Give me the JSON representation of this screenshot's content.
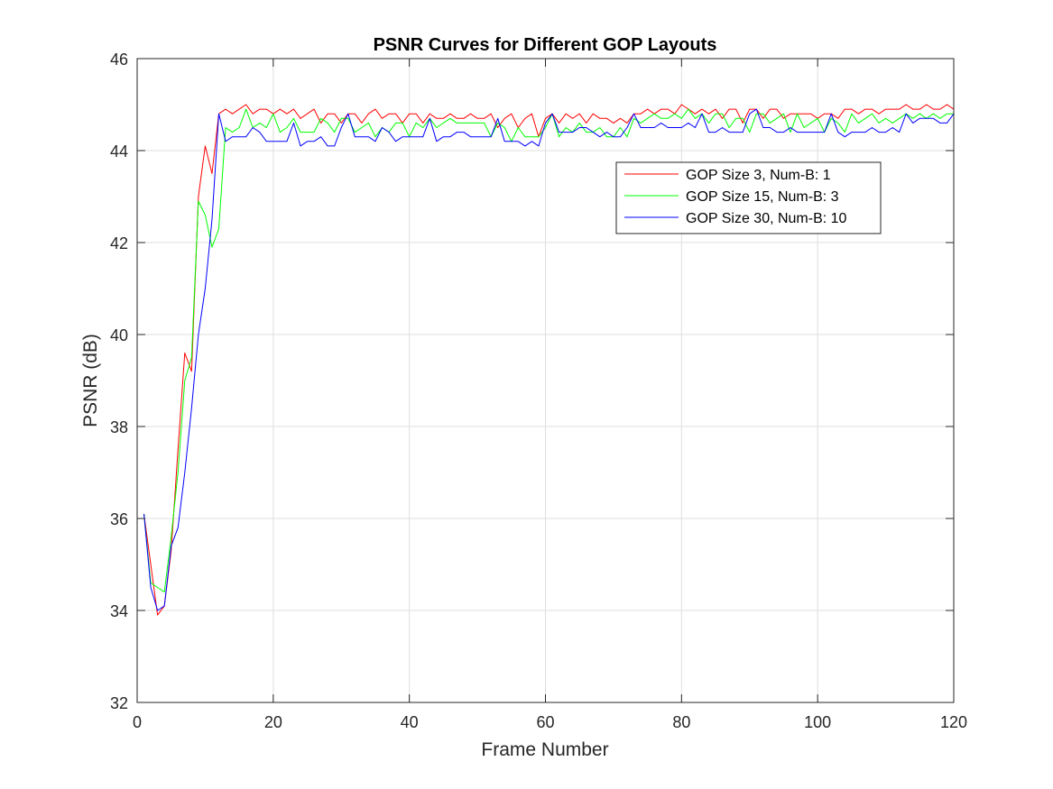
{
  "chart_data": {
    "type": "line",
    "title": "PSNR Curves for Different GOP Layouts",
    "xlabel": "Frame Number",
    "ylabel": "PSNR (dB)",
    "xlim": [
      0,
      120
    ],
    "ylim": [
      32,
      46
    ],
    "xticks": [
      0,
      20,
      40,
      60,
      80,
      100,
      120
    ],
    "yticks": [
      32,
      34,
      36,
      38,
      40,
      42,
      44,
      46
    ],
    "grid": true,
    "legend_position": "upper-right",
    "series": [
      {
        "name": "GOP Size 3, Num-B: 1",
        "color": "#ff0000",
        "x": [
          1,
          2,
          3,
          4,
          5,
          6,
          7,
          8,
          9,
          10,
          11,
          12,
          13,
          14,
          15,
          16,
          17,
          18,
          19,
          20,
          21,
          22,
          23,
          24,
          25,
          26,
          27,
          28,
          29,
          30,
          31,
          32,
          33,
          34,
          35,
          36,
          37,
          38,
          39,
          40,
          41,
          42,
          43,
          44,
          45,
          46,
          47,
          48,
          49,
          50,
          51,
          52,
          53,
          54,
          55,
          56,
          57,
          58,
          59,
          60,
          61,
          62,
          63,
          64,
          65,
          66,
          67,
          68,
          69,
          70,
          71,
          72,
          73,
          74,
          75,
          76,
          77,
          78,
          79,
          80,
          81,
          82,
          83,
          84,
          85,
          86,
          87,
          88,
          89,
          90,
          91,
          92,
          93,
          94,
          95,
          96,
          97,
          98,
          99,
          100,
          101,
          102,
          103,
          104,
          105,
          106,
          107,
          108,
          109,
          110,
          111,
          112,
          113,
          114,
          115,
          116,
          117,
          118,
          119,
          120
        ],
        "y": [
          36.1,
          35.0,
          33.9,
          34.1,
          35.3,
          37.5,
          39.6,
          39.2,
          43.0,
          44.1,
          43.5,
          44.8,
          44.9,
          44.8,
          44.9,
          45.0,
          44.8,
          44.9,
          44.9,
          44.8,
          44.9,
          44.8,
          44.9,
          44.7,
          44.8,
          44.9,
          44.6,
          44.8,
          44.8,
          44.6,
          44.8,
          44.8,
          44.6,
          44.8,
          44.9,
          44.7,
          44.8,
          44.8,
          44.6,
          44.8,
          44.8,
          44.6,
          44.8,
          44.7,
          44.7,
          44.8,
          44.7,
          44.7,
          44.8,
          44.7,
          44.7,
          44.8,
          44.5,
          44.7,
          44.8,
          44.5,
          44.7,
          44.8,
          44.3,
          44.7,
          44.8,
          44.6,
          44.8,
          44.7,
          44.8,
          44.6,
          44.8,
          44.7,
          44.7,
          44.6,
          44.7,
          44.6,
          44.8,
          44.8,
          44.9,
          44.8,
          44.9,
          44.9,
          44.8,
          45.0,
          44.9,
          44.8,
          44.9,
          44.8,
          44.9,
          44.7,
          44.9,
          44.9,
          44.6,
          44.9,
          44.9,
          44.7,
          44.9,
          44.9,
          44.7,
          44.8,
          44.8,
          44.8,
          44.8,
          44.7,
          44.8,
          44.8,
          44.7,
          44.9,
          44.9,
          44.8,
          44.9,
          44.9,
          44.8,
          44.9,
          44.9,
          44.9,
          45.0,
          44.9,
          44.9,
          45.0,
          44.9,
          44.9,
          45.0,
          44.9
        ]
      },
      {
        "name": "GOP Size 15, Num-B: 3",
        "color": "#00ff00",
        "x": [
          1,
          2,
          3,
          4,
          5,
          6,
          7,
          8,
          9,
          10,
          11,
          12,
          13,
          14,
          15,
          16,
          17,
          18,
          19,
          20,
          21,
          22,
          23,
          24,
          25,
          26,
          27,
          28,
          29,
          30,
          31,
          32,
          33,
          34,
          35,
          36,
          37,
          38,
          39,
          40,
          41,
          42,
          43,
          44,
          45,
          46,
          47,
          48,
          49,
          50,
          51,
          52,
          53,
          54,
          55,
          56,
          57,
          58,
          59,
          60,
          61,
          62,
          63,
          64,
          65,
          66,
          67,
          68,
          69,
          70,
          71,
          72,
          73,
          74,
          75,
          76,
          77,
          78,
          79,
          80,
          81,
          82,
          83,
          84,
          85,
          86,
          87,
          88,
          89,
          90,
          91,
          92,
          93,
          94,
          95,
          96,
          97,
          98,
          99,
          100,
          101,
          102,
          103,
          104,
          105,
          106,
          107,
          108,
          109,
          110,
          111,
          112,
          113,
          114,
          115,
          116,
          117,
          118,
          119,
          120
        ],
        "y": [
          36.1,
          34.6,
          34.5,
          34.4,
          35.6,
          37.0,
          39.0,
          39.5,
          42.9,
          42.6,
          41.9,
          42.3,
          44.5,
          44.4,
          44.5,
          44.9,
          44.5,
          44.6,
          44.5,
          44.8,
          44.4,
          44.5,
          44.7,
          44.4,
          44.4,
          44.4,
          44.7,
          44.6,
          44.4,
          44.7,
          44.7,
          44.4,
          44.5,
          44.6,
          44.3,
          44.5,
          44.4,
          44.6,
          44.6,
          44.3,
          44.6,
          44.5,
          44.7,
          44.5,
          44.6,
          44.7,
          44.6,
          44.6,
          44.6,
          44.6,
          44.6,
          44.3,
          44.6,
          44.5,
          44.2,
          44.5,
          44.3,
          44.3,
          44.3,
          44.5,
          44.8,
          44.3,
          44.5,
          44.4,
          44.6,
          44.4,
          44.4,
          44.5,
          44.3,
          44.3,
          44.5,
          44.3,
          44.7,
          44.6,
          44.7,
          44.8,
          44.7,
          44.7,
          44.8,
          44.7,
          44.9,
          44.7,
          44.8,
          44.6,
          44.8,
          44.8,
          44.5,
          44.7,
          44.7,
          44.4,
          44.8,
          44.8,
          44.6,
          44.7,
          44.8,
          44.4,
          44.8,
          44.5,
          44.6,
          44.7,
          44.4,
          44.7,
          44.6,
          44.4,
          44.8,
          44.6,
          44.7,
          44.8,
          44.6,
          44.7,
          44.6,
          44.7,
          44.8,
          44.7,
          44.8,
          44.7,
          44.8,
          44.7,
          44.8,
          44.8
        ]
      },
      {
        "name": "GOP Size 30, Num-B: 10",
        "color": "#0000ff",
        "x": [
          1,
          2,
          3,
          4,
          5,
          6,
          7,
          8,
          9,
          10,
          11,
          12,
          13,
          14,
          15,
          16,
          17,
          18,
          19,
          20,
          21,
          22,
          23,
          24,
          25,
          26,
          27,
          28,
          29,
          30,
          31,
          32,
          33,
          34,
          35,
          36,
          37,
          38,
          39,
          40,
          41,
          42,
          43,
          44,
          45,
          46,
          47,
          48,
          49,
          50,
          51,
          52,
          53,
          54,
          55,
          56,
          57,
          58,
          59,
          60,
          61,
          62,
          63,
          64,
          65,
          66,
          67,
          68,
          69,
          70,
          71,
          72,
          73,
          74,
          75,
          76,
          77,
          78,
          79,
          80,
          81,
          82,
          83,
          84,
          85,
          86,
          87,
          88,
          89,
          90,
          91,
          92,
          93,
          94,
          95,
          96,
          97,
          98,
          99,
          100,
          101,
          102,
          103,
          104,
          105,
          106,
          107,
          108,
          109,
          110,
          111,
          112,
          113,
          114,
          115,
          116,
          117,
          118,
          119,
          120
        ],
        "y": [
          36.1,
          34.5,
          34.0,
          34.1,
          35.4,
          35.8,
          37.0,
          38.4,
          40.0,
          41.0,
          42.5,
          44.8,
          44.2,
          44.3,
          44.3,
          44.3,
          44.5,
          44.4,
          44.2,
          44.2,
          44.2,
          44.2,
          44.6,
          44.1,
          44.2,
          44.2,
          44.3,
          44.1,
          44.1,
          44.5,
          44.8,
          44.3,
          44.3,
          44.3,
          44.2,
          44.5,
          44.4,
          44.2,
          44.3,
          44.3,
          44.3,
          44.3,
          44.7,
          44.2,
          44.3,
          44.3,
          44.4,
          44.4,
          44.3,
          44.3,
          44.3,
          44.3,
          44.7,
          44.2,
          44.2,
          44.2,
          44.1,
          44.2,
          44.1,
          44.6,
          44.8,
          44.4,
          44.4,
          44.4,
          44.5,
          44.5,
          44.4,
          44.3,
          44.4,
          44.3,
          44.3,
          44.5,
          44.8,
          44.5,
          44.5,
          44.5,
          44.6,
          44.5,
          44.5,
          44.5,
          44.6,
          44.5,
          44.8,
          44.4,
          44.4,
          44.5,
          44.4,
          44.4,
          44.4,
          44.8,
          44.9,
          44.5,
          44.5,
          44.4,
          44.4,
          44.5,
          44.4,
          44.4,
          44.4,
          44.4,
          44.4,
          44.8,
          44.4,
          44.3,
          44.4,
          44.4,
          44.4,
          44.5,
          44.4,
          44.4,
          44.5,
          44.4,
          44.8,
          44.6,
          44.7,
          44.7,
          44.7,
          44.6,
          44.6,
          44.8
        ]
      }
    ]
  }
}
